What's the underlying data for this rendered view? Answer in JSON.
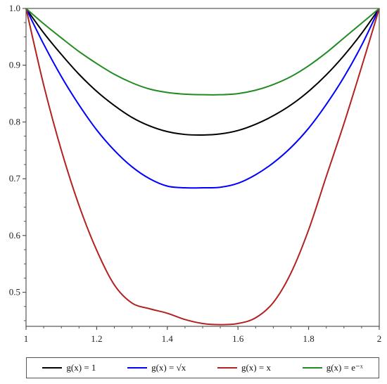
{
  "chart_data": {
    "type": "line",
    "title": "",
    "xlabel": "",
    "ylabel": "",
    "xlim": [
      1,
      2
    ],
    "ylim": [
      0.44,
      1.0
    ],
    "x_ticks": [
      "1",
      "1.2",
      "1.4",
      "1.6",
      "1.8",
      "2"
    ],
    "y_ticks": [
      "0.5",
      "0.6",
      "0.7",
      "0.8",
      "0.9",
      "1.0"
    ],
    "grid": false,
    "legend_position": "bottom",
    "series": [
      {
        "name": "g(x) = 1",
        "color": "#000000",
        "x": [
          1.0,
          1.05,
          1.1,
          1.15,
          1.2,
          1.25,
          1.3,
          1.35,
          1.4,
          1.45,
          1.5,
          1.55,
          1.6,
          1.65,
          1.7,
          1.75,
          1.8,
          1.85,
          1.9,
          1.95,
          2.0
        ],
        "y": [
          1.0,
          0.957,
          0.919,
          0.884,
          0.854,
          0.829,
          0.808,
          0.793,
          0.783,
          0.778,
          0.777,
          0.779,
          0.785,
          0.796,
          0.811,
          0.83,
          0.854,
          0.883,
          0.917,
          0.956,
          1.0
        ]
      },
      {
        "name": "g(x) = √x",
        "color": "#0000ff",
        "x": [
          1.0,
          1.05,
          1.1,
          1.15,
          1.2,
          1.25,
          1.3,
          1.35,
          1.4,
          1.45,
          1.5,
          1.55,
          1.6,
          1.65,
          1.7,
          1.75,
          1.8,
          1.85,
          1.9,
          1.95,
          2.0
        ],
        "y": [
          1.0,
          0.937,
          0.88,
          0.83,
          0.786,
          0.75,
          0.721,
          0.7,
          0.687,
          0.684,
          0.684,
          0.685,
          0.692,
          0.707,
          0.728,
          0.755,
          0.789,
          0.831,
          0.879,
          0.935,
          1.0
        ]
      },
      {
        "name": "g(x) = x",
        "color": "#b22222",
        "x": [
          1.0,
          1.05,
          1.1,
          1.15,
          1.2,
          1.25,
          1.3,
          1.35,
          1.4,
          1.45,
          1.5,
          1.55,
          1.6,
          1.65,
          1.7,
          1.75,
          1.8,
          1.85,
          1.9,
          1.95,
          2.0
        ],
        "y": [
          1.0,
          0.865,
          0.75,
          0.653,
          0.574,
          0.513,
          0.481,
          0.471,
          0.463,
          0.452,
          0.445,
          0.443,
          0.445,
          0.455,
          0.482,
          0.534,
          0.61,
          0.704,
          0.797,
          0.897,
          1.0
        ]
      },
      {
        "name": "g(x) = e^-x",
        "color": "#228b22",
        "x": [
          1.0,
          1.05,
          1.1,
          1.15,
          1.2,
          1.25,
          1.3,
          1.35,
          1.4,
          1.45,
          1.5,
          1.55,
          1.6,
          1.65,
          1.7,
          1.75,
          1.8,
          1.85,
          1.9,
          1.95,
          2.0
        ],
        "y": [
          1.0,
          0.973,
          0.948,
          0.924,
          0.903,
          0.884,
          0.869,
          0.858,
          0.852,
          0.849,
          0.848,
          0.848,
          0.85,
          0.856,
          0.866,
          0.88,
          0.899,
          0.922,
          0.948,
          0.974,
          1.0
        ]
      }
    ]
  },
  "legend": {
    "items": [
      {
        "prefix": "g(x) = ",
        "expr": "1",
        "color": "#000000"
      },
      {
        "prefix": "g(x) = ",
        "expr": "√x",
        "color": "#0000ff"
      },
      {
        "prefix": "g(x) = ",
        "expr": "x",
        "color": "#b22222"
      },
      {
        "prefix": "g(x) = ",
        "expr": "e⁻ˣ",
        "color": "#228b22"
      }
    ]
  }
}
